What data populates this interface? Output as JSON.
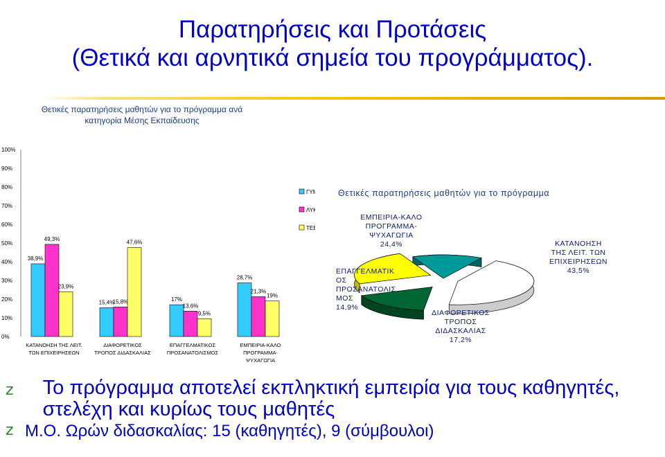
{
  "slide": {
    "title_line1": "Παρατηρήσεις και Προτάσεις",
    "title_line2": "(Θετικά και αρνητικά σημεία του προγράμματος).",
    "bullets": [
      {
        "mark": "z",
        "text": "Το πρόγραμμα αποτελεί εκπληκτική εμπειρία για τους καθηγητές, στελέχη και κυρίως τους    μαθητές"
      },
      {
        "mark": "z",
        "text": "Μ.Ο. Ωρών διδασκαλίας: 15 (καθηγητές), 9 (σύμβουλοι)"
      }
    ]
  },
  "colors": {
    "title": "#0000cc",
    "gymnasio": "#33ccff",
    "lykeio": "#ff33cc",
    "tee": "#ffff66",
    "bullet": "#2e8b2e",
    "pie_diaforetikos": "#006633",
    "pie_empeiria": "#ffff00",
    "pie_epaggelmatikos": "#009999",
    "pie_katanoisi": "#ffffff"
  },
  "chart_data": [
    {
      "type": "bar",
      "title_lines": [
        "Θετικές παρατηρήσεις μαθητών για το πρόγραμμα ανά",
        "κατηγορία Μέσης Εκπαίδευσης"
      ],
      "categories": [
        {
          "lines": [
            "ΚΑΤΑΝΟΗΣΗ ΤΗΣ ΛΕΙΤ.",
            "ΤΩΝ ΕΠΙΧΕΙΡΗΣΕΩΝ"
          ]
        },
        {
          "lines": [
            "ΔΙΑΦΟΡΕΤΙΚΟΣ",
            "ΤΡΟΠΟΣ ΔΙΔΑΣΚΑΛΙΑΣ"
          ]
        },
        {
          "lines": [
            "ΕΠΑΓΓΕΛΜΑΤΙΚΟΣ",
            "ΠΡΟΣΑΝΑΤΟΛΙΣΜΟΣ"
          ]
        },
        {
          "lines": [
            "ΕΜΠΕΙΡΙΑ-ΚΑΛΟ",
            "ΠΡΟΓΡΑΜΜΑ-",
            "ΨΥΧΑΓΩΓΙΑ"
          ]
        }
      ],
      "series": [
        {
          "name": "ΓΥΜΝΑΣΙΟ",
          "values": [
            38.9,
            15.4,
            17,
            28.7
          ],
          "labels": [
            "38,9%",
            "15,4%",
            "17%",
            "28,7%"
          ]
        },
        {
          "name": "ΛΥΚΕΙΟ",
          "values": [
            49.3,
            15.8,
            13.6,
            21.3
          ],
          "labels": [
            "49,3%",
            "15,8%",
            "13,6%",
            "21,3%"
          ]
        },
        {
          "name": "ΤΕΕ",
          "values": [
            23.9,
            47.6,
            9.5,
            19
          ],
          "labels": [
            "23,9%",
            "47,6%",
            "9,5%",
            "19%"
          ]
        }
      ],
      "yticks": [
        "0%",
        "10%",
        "20%",
        "30%",
        "40%",
        "50%",
        "60%",
        "70%",
        "80%",
        "90%",
        "100%"
      ],
      "ylim": [
        0,
        100
      ],
      "grid": false,
      "legend": "right"
    },
    {
      "type": "pie",
      "title": "Θετικές παρατηρήσεις μαθητών για το πρόγραμμα",
      "slices": [
        {
          "lines": [
            "ΚΑΤΑΝΟΗΣΗ",
            "ΤΗΣ ΛΕΙΤ. ΤΩΝ",
            "ΕΠΙΧΕΙΡΗΣΕΩΝ",
            "43,5%"
          ],
          "value": 43.5
        },
        {
          "lines": [
            "ΔΙΑΦΟΡΕΤΙΚΟΣ",
            "ΤΡΟΠΟΣ",
            "ΔΙΔΑΣΚΑΛΙΑΣ",
            "17,2%"
          ],
          "value": 17.2
        },
        {
          "lines": [
            "ΕΜΠΕΙΡΙΑ-ΚΑΛΟ",
            "ΠΡΟΓΡΑΜΜΑ-",
            "ΨΥΧΑΓΩΓΙΑ",
            "24,4%"
          ],
          "value": 24.4
        },
        {
          "lines": [
            "ΕΠΑΓΓΕΛΜΑΤΙΚ",
            "ΟΣ",
            "ΠΡΟΣΑΝΑΤΟΛΙΣ",
            "ΜΟΣ",
            "14,9%"
          ],
          "value": 14.9
        }
      ]
    }
  ]
}
